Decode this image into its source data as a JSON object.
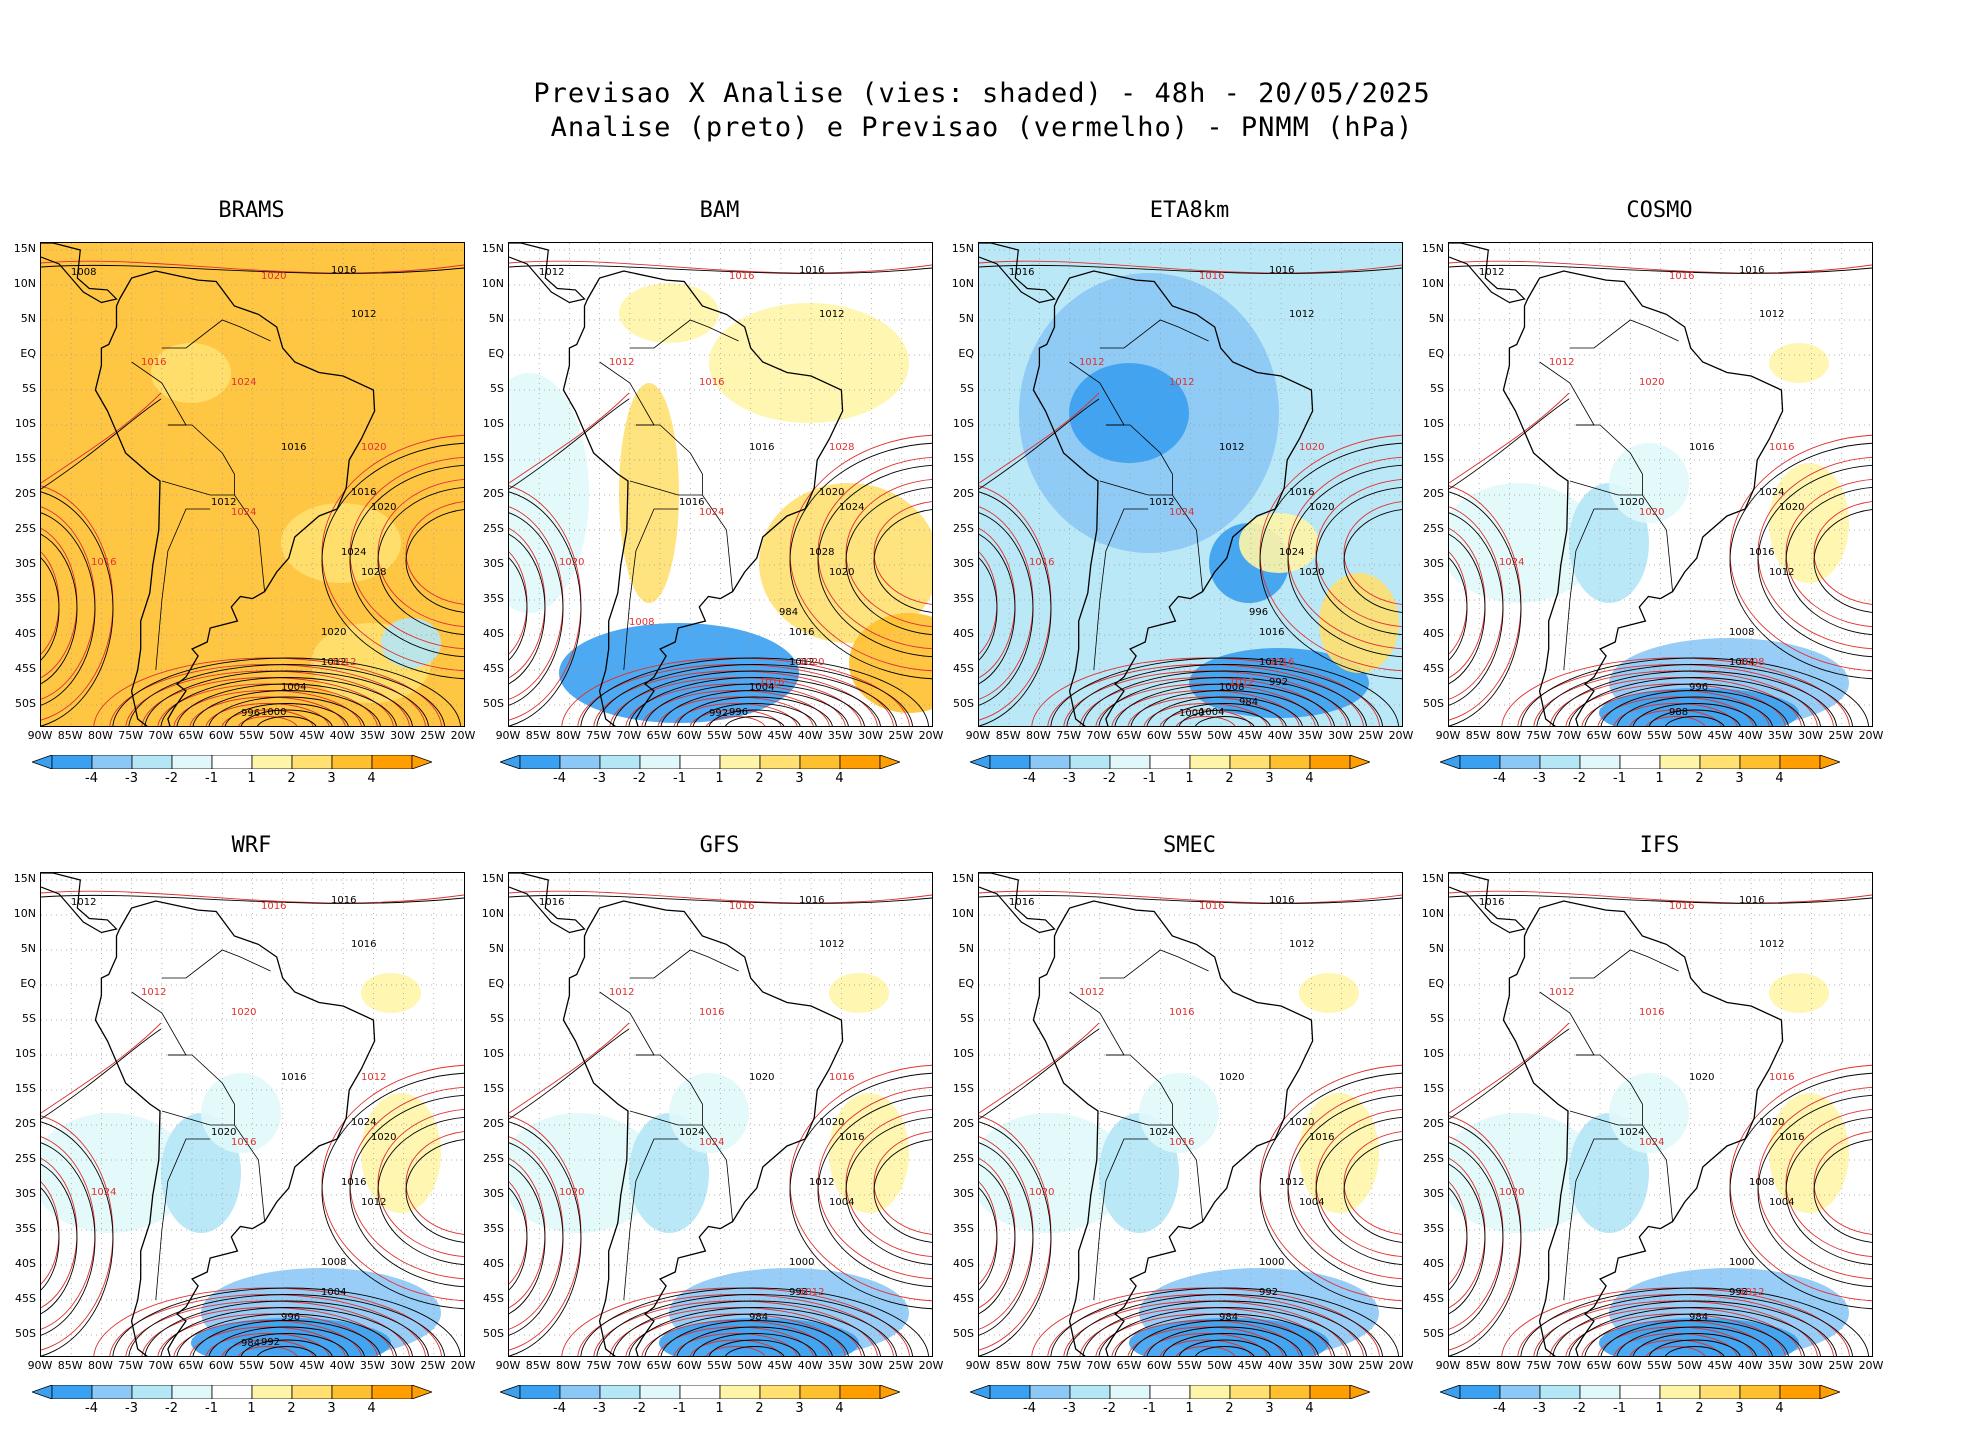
{
  "header": {
    "title_line1": "Previsao X Analise (vies: shaded) - 48h - 20/05/2025",
    "title_line2": "Analise (preto) e Previsao (vermelho) - PNMM (hPa)"
  },
  "axes": {
    "lat_labels": [
      "15N",
      "10N",
      "5N",
      "EQ",
      "5S",
      "10S",
      "15S",
      "20S",
      "25S",
      "30S",
      "35S",
      "40S",
      "45S",
      "50S"
    ],
    "lon_labels": [
      "90W",
      "85W",
      "80W",
      "75W",
      "70W",
      "65W",
      "60W",
      "55W",
      "50W",
      "45W",
      "40W",
      "35W",
      "30W",
      "25W",
      "20W"
    ]
  },
  "colorbar": {
    "labels": [
      "-4",
      "-3",
      "-2",
      "-1",
      "1",
      "2",
      "3",
      "4"
    ],
    "colors": [
      "#3aa0ef",
      "#8cc8f5",
      "#b4e6f5",
      "#e0f8fa",
      "#ffffff",
      "#fff5a8",
      "#ffe070",
      "#ffc030",
      "#ff9e00"
    ]
  },
  "colors": {
    "analysis": "#000000",
    "forecast": "#e03030"
  },
  "panels": [
    {
      "name": "BRAMS",
      "bias": "warm",
      "labels_black": [
        "1016",
        "1012",
        "1008",
        "1016",
        "1012",
        "1016",
        "1020",
        "1024",
        "1028",
        "1020",
        "1012",
        "1004",
        "1000",
        "996"
      ],
      "labels_red": [
        "1020",
        "1016",
        "1024",
        "1016",
        "1024",
        "1020",
        "1012"
      ]
    },
    {
      "name": "BAM",
      "bias": "mixed",
      "labels_black": [
        "1016",
        "1012",
        "1012",
        "1016",
        "1016",
        "1020",
        "1024",
        "1028",
        "1020",
        "1016",
        "1012",
        "1004",
        "996",
        "992",
        "984"
      ],
      "labels_red": [
        "1016",
        "1012",
        "1016",
        "1020",
        "1024",
        "1028",
        "1020",
        "1016",
        "1008"
      ]
    },
    {
      "name": "ETA8km",
      "bias": "cold",
      "labels_black": [
        "1016",
        "1012",
        "1016",
        "1012",
        "1012",
        "1016",
        "1020",
        "1024",
        "1020",
        "1016",
        "1012",
        "1008",
        "1004",
        "1000",
        "996",
        "992",
        "984"
      ],
      "labels_red": [
        "1016",
        "1012",
        "1012",
        "1016",
        "1024",
        "1020",
        "1016",
        "1012"
      ]
    },
    {
      "name": "COSMO",
      "bias": "slight",
      "labels_black": [
        "1016",
        "1012",
        "1012",
        "1016",
        "1020",
        "1024",
        "1020",
        "1016",
        "1012",
        "1008",
        "1004",
        "996",
        "988"
      ],
      "labels_red": [
        "1016",
        "1012",
        "1020",
        "1024",
        "1020",
        "1016",
        "1008"
      ]
    },
    {
      "name": "WRF",
      "bias": "slight",
      "labels_black": [
        "1016",
        "1016",
        "1012",
        "1016",
        "1020",
        "1024",
        "1020",
        "1016",
        "1012",
        "1008",
        "1004",
        "996",
        "992",
        "984"
      ],
      "labels_red": [
        "1016",
        "1012",
        "1020",
        "1024",
        "1016",
        "1012"
      ]
    },
    {
      "name": "GFS",
      "bias": "slight",
      "labels_black": [
        "1016",
        "1012",
        "1016",
        "1020",
        "1024",
        "1020",
        "1016",
        "1012",
        "1004",
        "1000",
        "992",
        "984"
      ],
      "labels_red": [
        "1016",
        "1012",
        "1016",
        "1020",
        "1024",
        "1016",
        "1012"
      ]
    },
    {
      "name": "SMEC",
      "bias": "slight",
      "labels_black": [
        "1016",
        "1012",
        "1016",
        "1020",
        "1024",
        "1020",
        "1016",
        "1012",
        "1004",
        "1000",
        "992",
        "984"
      ],
      "labels_red": [
        "1016",
        "1012",
        "1016",
        "1020",
        "1016"
      ]
    },
    {
      "name": "IFS",
      "bias": "slight",
      "labels_black": [
        "1016",
        "1012",
        "1016",
        "1020",
        "1024",
        "1020",
        "1016",
        "1008",
        "1004",
        "1000",
        "992",
        "984"
      ],
      "labels_red": [
        "1016",
        "1012",
        "1016",
        "1020",
        "1024",
        "1016",
        "1012"
      ]
    }
  ]
}
